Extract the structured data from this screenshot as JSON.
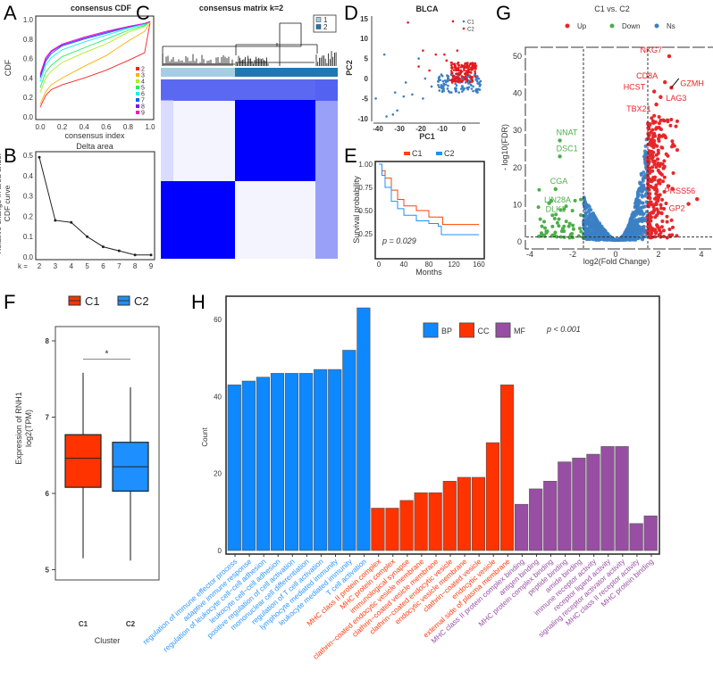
{
  "panels": {
    "A": "A",
    "B": "B",
    "C": "C",
    "D": "D",
    "E": "E",
    "F": "F",
    "G": "G",
    "H": "H"
  },
  "chart_data": [
    {
      "id": "A",
      "type": "line",
      "title": "consensus CDF",
      "xlabel": "consensus index",
      "ylabel": "CDF",
      "xlim": [
        0,
        1
      ],
      "ylim": [
        0,
        1
      ],
      "xticks": [
        "0.0",
        "0.2",
        "0.4",
        "0.6",
        "0.8",
        "1.0"
      ],
      "yticks": [
        "0.0",
        "0.2",
        "0.4",
        "0.6",
        "0.8",
        "1.0"
      ],
      "x": [
        0,
        0.05,
        0.1,
        0.2,
        0.4,
        0.6,
        0.8,
        0.95,
        1.0
      ],
      "legend_position": "right",
      "series": [
        {
          "name": "2",
          "color": "#ff2020",
          "values": [
            0.1,
            0.22,
            0.28,
            0.33,
            0.4,
            0.48,
            0.58,
            0.66,
            0.97
          ]
        },
        {
          "name": "3",
          "color": "#ffb000",
          "values": [
            0.13,
            0.26,
            0.33,
            0.4,
            0.52,
            0.63,
            0.78,
            0.88,
            0.97
          ]
        },
        {
          "name": "4",
          "color": "#a8f020",
          "values": [
            0.25,
            0.4,
            0.47,
            0.56,
            0.66,
            0.75,
            0.87,
            0.93,
            0.98
          ]
        },
        {
          "name": "5",
          "color": "#20f060",
          "values": [
            0.3,
            0.46,
            0.53,
            0.62,
            0.71,
            0.8,
            0.89,
            0.94,
            0.98
          ]
        },
        {
          "name": "6",
          "color": "#10f0f0",
          "values": [
            0.36,
            0.53,
            0.61,
            0.69,
            0.77,
            0.84,
            0.91,
            0.95,
            0.98
          ]
        },
        {
          "name": "7",
          "color": "#1060ff",
          "values": [
            0.4,
            0.57,
            0.65,
            0.73,
            0.8,
            0.86,
            0.92,
            0.96,
            0.98
          ]
        },
        {
          "name": "8",
          "color": "#8010ff",
          "values": [
            0.42,
            0.59,
            0.67,
            0.74,
            0.81,
            0.87,
            0.93,
            0.96,
            0.98
          ]
        },
        {
          "name": "9",
          "color": "#ff10c0",
          "values": [
            0.44,
            0.61,
            0.68,
            0.75,
            0.82,
            0.88,
            0.93,
            0.96,
            0.98
          ]
        }
      ]
    },
    {
      "id": "B",
      "type": "line",
      "title": "Delta area",
      "ylabel": "Relative change in area under CDF curve",
      "xprefix": "k =",
      "categories": [
        "2",
        "3",
        "4",
        "5",
        "6",
        "7",
        "8",
        "9"
      ],
      "values": [
        0.49,
        0.18,
        0.17,
        0.1,
        0.05,
        0.03,
        0.01,
        0.01
      ],
      "yticks": [
        "0.0",
        "0.1",
        "0.2",
        "0.3",
        "0.4",
        "0.5"
      ],
      "ylim": [
        0,
        0.5
      ]
    },
    {
      "id": "C",
      "type": "heatmap",
      "title": "consensus matrix k=2",
      "legend": [
        {
          "name": "1",
          "color": "#a6cee3"
        },
        {
          "name": "2",
          "color": "#1f78b4"
        }
      ],
      "cell_color": "#0000ff"
    },
    {
      "id": "D",
      "type": "scatter",
      "title": "BLCA",
      "xlabel": "PC1",
      "ylabel": "PC2",
      "xticks": [
        "-40",
        "-30",
        "-20",
        "-10",
        "0"
      ],
      "yticks": [
        "-10",
        "-5",
        "0",
        "5",
        "10",
        "15"
      ],
      "xlim": [
        -42,
        8
      ],
      "ylim": [
        -10.5,
        15.5
      ],
      "legend_position": "top-right",
      "series": [
        {
          "name": "C1",
          "color": "#3b7fc4"
        },
        {
          "name": "C2",
          "color": "#e41a1c"
        }
      ]
    },
    {
      "id": "E",
      "type": "line",
      "xlabel": "Months",
      "ylabel": "Survival probability",
      "xticks": [
        "0",
        "40",
        "80",
        "120",
        "160"
      ],
      "yticks": [
        "0.25",
        "0.50",
        "0.75",
        "1.00"
      ],
      "xlim": [
        0,
        160
      ],
      "ylim": [
        0,
        1
      ],
      "annotation": "p = 0.029",
      "legend_position": "top",
      "series": [
        {
          "name": "C1",
          "color": "#ff4500",
          "x": [
            0,
            5,
            10,
            20,
            30,
            40,
            60,
            80,
            100,
            102,
            160
          ],
          "values": [
            1,
            0.93,
            0.85,
            0.72,
            0.62,
            0.55,
            0.5,
            0.43,
            0.43,
            0.35,
            0.35
          ]
        },
        {
          "name": "C2",
          "color": "#1e90ff",
          "x": [
            0,
            5,
            10,
            20,
            30,
            40,
            60,
            80,
            95,
            100,
            160
          ],
          "values": [
            1,
            0.88,
            0.75,
            0.6,
            0.52,
            0.45,
            0.39,
            0.36,
            0.33,
            0.24,
            0.24
          ]
        }
      ]
    },
    {
      "id": "F",
      "type": "box",
      "xlabel": "Cluster",
      "ylabel": "Expression of RNH1 log2(TPM)",
      "ylabel_lines": [
        "Expression of RNH1",
        "log2(TPM)"
      ],
      "yticks": [
        "5",
        "6",
        "7",
        "8"
      ],
      "ylim": [
        4.9,
        8.2
      ],
      "significance": "*",
      "legend_position": "top",
      "series": [
        {
          "name": "C1",
          "color": "#ff3300",
          "min": 5.15,
          "q1": 6.08,
          "median": 6.46,
          "q3": 6.77,
          "max": 7.58
        },
        {
          "name": "C2",
          "color": "#1e8fff",
          "min": 5.12,
          "q1": 6.03,
          "median": 6.35,
          "q3": 6.67,
          "max": 7.39
        }
      ]
    },
    {
      "id": "G",
      "type": "scatter",
      "title": "C1 vs. C2",
      "xlabel": "log2(Fold Change)",
      "ylabel": "- log10(FDR)",
      "xticks": [
        "-4",
        "-2",
        "0",
        "2",
        "4"
      ],
      "yticks": [
        "0",
        "10",
        "20",
        "30",
        "40",
        "50"
      ],
      "xlim": [
        -4.1,
        4.3
      ],
      "ylim": [
        -1,
        52
      ],
      "thresholds": {
        "log2fc": [
          -1.5,
          1.5
        ],
        "neg_log10_fdr": 1.3
      },
      "legend_position": "top",
      "series": [
        {
          "name": "Up",
          "color": "#e8262a"
        },
        {
          "name": "Down",
          "color": "#4daf4a"
        },
        {
          "name": "Ns",
          "color": "#3b7fc4"
        }
      ],
      "labeled_genes": [
        {
          "gene": "NKG7",
          "x": 2.5,
          "y": 50,
          "group": "Up"
        },
        {
          "gene": "CD8A",
          "x": 2.3,
          "y": 43,
          "group": "Up"
        },
        {
          "gene": "GZMH",
          "x": 2.6,
          "y": 41.5,
          "group": "Up"
        },
        {
          "gene": "HCST",
          "x": 1.8,
          "y": 40.5,
          "group": "Up"
        },
        {
          "gene": "LAG3",
          "x": 2.1,
          "y": 39,
          "group": "Up"
        },
        {
          "gene": "TBX21",
          "x": 1.9,
          "y": 37,
          "group": "Up"
        },
        {
          "gene": "PRSS56",
          "x": 3.8,
          "y": 11.5,
          "group": "Up"
        },
        {
          "gene": "GP2",
          "x": 3.4,
          "y": 10.2,
          "group": "Up"
        },
        {
          "gene": "NNAT",
          "x": -2.6,
          "y": 27.3,
          "group": "Down"
        },
        {
          "gene": "DSC1",
          "x": -2.6,
          "y": 23,
          "group": "Down"
        },
        {
          "gene": "CGA",
          "x": -2.8,
          "y": 14.2,
          "group": "Down"
        },
        {
          "gene": "LIN28A",
          "x": -3.0,
          "y": 11,
          "group": "Down"
        },
        {
          "gene": "DLK1",
          "x": -3.1,
          "y": 10.4,
          "group": "Down"
        }
      ]
    },
    {
      "id": "H",
      "type": "bar",
      "ylabel": "Count",
      "yticks": [
        "0",
        "20",
        "40",
        "60"
      ],
      "ylim": [
        0,
        64
      ],
      "annotation": "p < 0.001",
      "legend_position": "top-right",
      "series": [
        {
          "name": "BP",
          "color": "#0d88ff",
          "label_color": "#2b95ff",
          "categories": [
            "regulation of immune effector process",
            "adaptive immune response",
            "regulation of leukocyte cell−cell adhesion",
            "leukocyte cell−cell adhesion",
            "positive regulation of cell activation",
            "mononuclear cell differentiation",
            "regulation of T cell activation",
            "lymphocyte mediated immunity",
            "leukocyte mediated immunity",
            "T cell activation"
          ],
          "values": [
            43,
            44,
            45,
            46,
            46,
            46,
            47,
            47,
            52,
            63
          ]
        },
        {
          "name": "CC",
          "color": "#ff3300",
          "label_color": "#ff3a10",
          "categories": [
            "MHC class II protein complex",
            "MHC protein complex",
            "immunological synapse",
            "clathrin−coated endocytic vesicle membrane",
            "clathrin−coated vesicle membrane",
            "clathrin−coated endocytic vesicle",
            "endocytic vesicle membrane",
            "clathrin−coated vesicle",
            "endocytic vesicle",
            "external side of plasma membrane"
          ],
          "values": [
            11,
            11,
            13,
            15,
            15,
            18,
            19,
            19,
            28,
            43
          ]
        },
        {
          "name": "MF",
          "color": "#984ea3",
          "label_color": "#9a50a6",
          "categories": [
            "MHC class II protein complex binding",
            "antigen binding",
            "MHC protein complex binding",
            "peptide binding",
            "amide binding",
            "immune receptor activity",
            "receptor ligand activity",
            "signaling receptor activator activity",
            "MHC class II receptor activity",
            "MHC protein binding"
          ],
          "values": [
            12,
            16,
            18,
            23,
            24,
            25,
            27,
            27,
            7,
            9
          ]
        }
      ]
    }
  ]
}
